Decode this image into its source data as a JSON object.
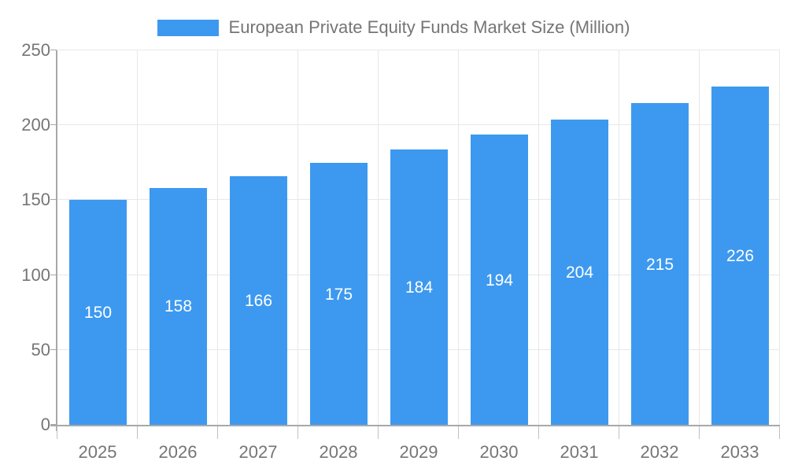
{
  "chart_data": {
    "type": "bar",
    "title": "European Private Equity Funds Market Size (Million)",
    "categories": [
      "2025",
      "2026",
      "2027",
      "2028",
      "2029",
      "2030",
      "2031",
      "2032",
      "2033"
    ],
    "values": [
      150,
      158,
      166,
      175,
      184,
      194,
      204,
      215,
      226
    ],
    "series": [
      {
        "name": "European Private Equity Funds Market Size (Million)",
        "values": [
          150,
          158,
          166,
          175,
          184,
          194,
          204,
          215,
          226
        ]
      }
    ],
    "xlabel": "",
    "ylabel": "",
    "ylim": [
      0,
      250
    ],
    "yticks": [
      0,
      50,
      100,
      150,
      200,
      250
    ],
    "grid": "horizontal and vertical gridlines on",
    "legend_position": "top-center",
    "value_labels": "white, centered inside bars"
  },
  "legend": {
    "label": "European Private Equity Funds Market Size (Million)"
  },
  "colors": {
    "bar": "#3D99F0",
    "bar_value_text": "#ffffff",
    "gridline": "#e8e8e8",
    "axis": "#a8a8a8",
    "tick": "#c0c0c0",
    "axis_text": "#757575",
    "background": "#ffffff"
  }
}
